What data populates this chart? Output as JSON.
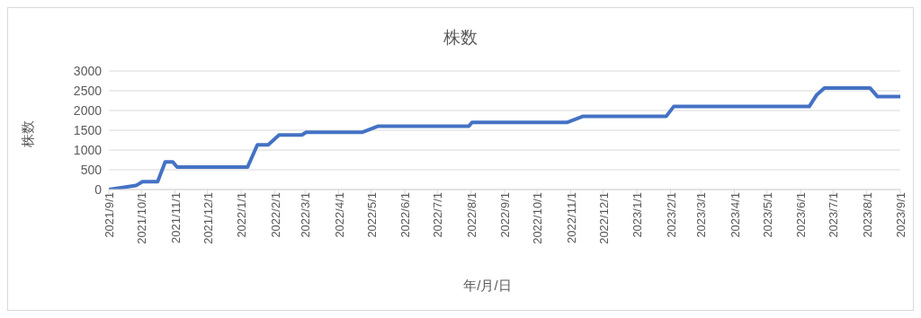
{
  "chart_data": {
    "type": "line",
    "title": "株数",
    "xlabel": "年/月/日",
    "ylabel": "株数",
    "x": [
      "2021-09-01",
      "2021-09-26",
      "2021-10-02",
      "2021-10-16",
      "2021-10-23",
      "2021-10-30",
      "2021-11-03",
      "2022-01-07",
      "2022-01-16",
      "2022-01-26",
      "2022-02-05",
      "2022-02-26",
      "2022-03-02",
      "2022-04-23",
      "2022-05-07",
      "2022-07-30",
      "2022-08-02",
      "2022-10-29",
      "2022-11-12",
      "2023-01-28",
      "2023-02-04",
      "2023-06-09",
      "2023-06-16",
      "2023-06-23",
      "2023-08-04",
      "2023-08-11",
      "2023-09-01"
    ],
    "series": [
      {
        "color": "#4472c4",
        "values": [
          0,
          100,
          200,
          200,
          700,
          700,
          570,
          570,
          1130,
          1130,
          1380,
          1380,
          1450,
          1450,
          1600,
          1600,
          1700,
          1700,
          1850,
          1850,
          2100,
          2100,
          2400,
          2570,
          2570,
          2350,
          2350
        ]
      }
    ],
    "xlim": [
      "2021-09-01",
      "2023-09-01"
    ],
    "xticks": [
      {
        "value": "2021-09-01",
        "label": "2021/9/1"
      },
      {
        "value": "2021-10-01",
        "label": "2021/10/1"
      },
      {
        "value": "2021-11-01",
        "label": "2021/11/1"
      },
      {
        "value": "2021-12-01",
        "label": "2021/12/1"
      },
      {
        "value": "2022-01-01",
        "label": "2022/1/1"
      },
      {
        "value": "2022-02-01",
        "label": "2022/2/1"
      },
      {
        "value": "2022-03-01",
        "label": "2022/3/1"
      },
      {
        "value": "2022-04-01",
        "label": "2022/4/1"
      },
      {
        "value": "2022-05-01",
        "label": "2022/5/1"
      },
      {
        "value": "2022-06-01",
        "label": "2022/6/1"
      },
      {
        "value": "2022-07-01",
        "label": "2022/7/1"
      },
      {
        "value": "2022-08-01",
        "label": "2022/8/1"
      },
      {
        "value": "2022-09-01",
        "label": "2022/9/1"
      },
      {
        "value": "2022-10-01",
        "label": "2022/10/1"
      },
      {
        "value": "2022-11-01",
        "label": "2022/11/1"
      },
      {
        "value": "2022-12-01",
        "label": "2022/12/1"
      },
      {
        "value": "2023-01-01",
        "label": "2023/1/1"
      },
      {
        "value": "2023-02-01",
        "label": "2023/2/1"
      },
      {
        "value": "2023-03-01",
        "label": "2023/3/1"
      },
      {
        "value": "2023-04-01",
        "label": "2023/4/1"
      },
      {
        "value": "2023-05-01",
        "label": "2023/5/1"
      },
      {
        "value": "2023-06-01",
        "label": "2023/6/1"
      },
      {
        "value": "2023-07-01",
        "label": "2023/7/1"
      },
      {
        "value": "2023-08-01",
        "label": "2023/8/1"
      },
      {
        "value": "2023-09-01",
        "label": "2023/9/1"
      }
    ],
    "ylim": [
      0,
      3000
    ],
    "yticks": [
      0,
      500,
      1000,
      1500,
      2000,
      2500,
      3000
    ],
    "grid": "y",
    "legend": false,
    "marker": "none",
    "line_style": "solid"
  }
}
